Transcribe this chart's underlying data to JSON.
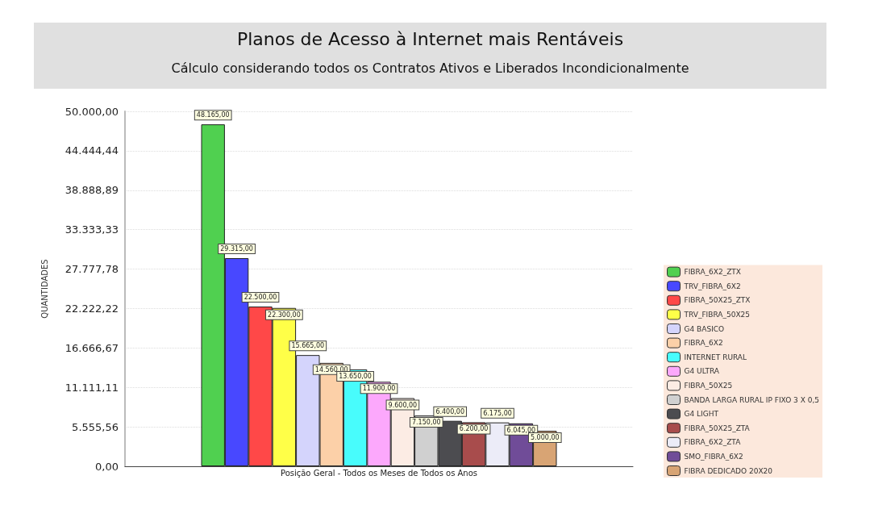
{
  "chart_data": {
    "type": "bar",
    "title": "Planos de Acesso à Internet mais Rentáveis",
    "subtitle": "Cálculo considerando todos os Contratos Ativos e Liberados Incondicionalmente",
    "ylabel": "QUANTIDADES",
    "categories": [
      "Posição Geral - Todos os Meses de Todos os Anos"
    ],
    "series": [
      {
        "name": "FIBRA_6X2_ZTX",
        "color": "#50d050",
        "values": [
          48165
        ],
        "value_labels": [
          "48.165,00"
        ]
      },
      {
        "name": "TRV_FIBRA_6X2",
        "color": "#4848ff",
        "values": [
          29315
        ],
        "value_labels": [
          "29.315,00"
        ]
      },
      {
        "name": "FIBRA_50X25_ZTX",
        "color": "#ff4848",
        "values": [
          22500
        ],
        "value_labels": [
          "22.500,00"
        ]
      },
      {
        "name": "TRV_FIBRA_50X25",
        "color": "#ffff48",
        "values": [
          22300
        ],
        "value_labels": [
          "22.300,00"
        ]
      },
      {
        "name": "G4 BASICO",
        "color": "#d4d4fc",
        "values": [
          15665
        ],
        "value_labels": [
          "15.665,00"
        ]
      },
      {
        "name": "FIBRA_6X2",
        "color": "#fcd0a8",
        "values": [
          14560
        ],
        "value_labels": [
          "14.560,00"
        ]
      },
      {
        "name": "INTERNET RURAL",
        "color": "#48fcfc",
        "values": [
          13650
        ],
        "value_labels": [
          "13.650,00"
        ]
      },
      {
        "name": "G4 ULTRA",
        "color": "#fca8fc",
        "values": [
          11900
        ],
        "value_labels": [
          "11.900,00"
        ]
      },
      {
        "name": "FIBRA_50X25",
        "color": "#fcece4",
        "values": [
          9600
        ],
        "value_labels": [
          "9.600,00"
        ]
      },
      {
        "name": "BANDA LARGA RURAL IP FIXO 3 X 0,5",
        "color": "#d0d0d0",
        "values": [
          7150
        ],
        "value_labels": [
          "7.150,00"
        ]
      },
      {
        "name": "G4 LIGHT",
        "color": "#4c4c50",
        "values": [
          6400
        ],
        "value_labels": [
          "6.400,00"
        ]
      },
      {
        "name": "FIBRA_50X25_ZTA",
        "color": "#a84c4c",
        "values": [
          6200
        ],
        "value_labels": [
          "6.200,00"
        ]
      },
      {
        "name": "FIBRA_6X2_ZTA",
        "color": "#ececf8",
        "values": [
          6175
        ],
        "value_labels": [
          "6.175,00"
        ]
      },
      {
        "name": "SMO_FIBRA_6X2",
        "color": "#704c98",
        "values": [
          6045
        ],
        "value_labels": [
          "6.045,00"
        ]
      },
      {
        "name": "FIBRA DEDICADO 20X20",
        "color": "#d8a474",
        "values": [
          5000
        ],
        "value_labels": [
          "5.000,00"
        ]
      }
    ],
    "ylim": [
      0,
      50000
    ],
    "yticks": [
      {
        "value": 0,
        "label": "0,00"
      },
      {
        "value": 5555.56,
        "label": "5.555,56"
      },
      {
        "value": 11111.11,
        "label": "11.111,11"
      },
      {
        "value": 16666.67,
        "label": "16.666,67"
      },
      {
        "value": 22222.22,
        "label": "22.222,22"
      },
      {
        "value": 27777.78,
        "label": "27.777,78"
      },
      {
        "value": 33333.33,
        "label": "33.333,33"
      },
      {
        "value": 38888.89,
        "label": "38.888,89"
      },
      {
        "value": 44444.44,
        "label": "44.444,44"
      },
      {
        "value": 50000,
        "label": "50.000,00"
      }
    ],
    "grid": "y",
    "legend": "bottom right"
  }
}
